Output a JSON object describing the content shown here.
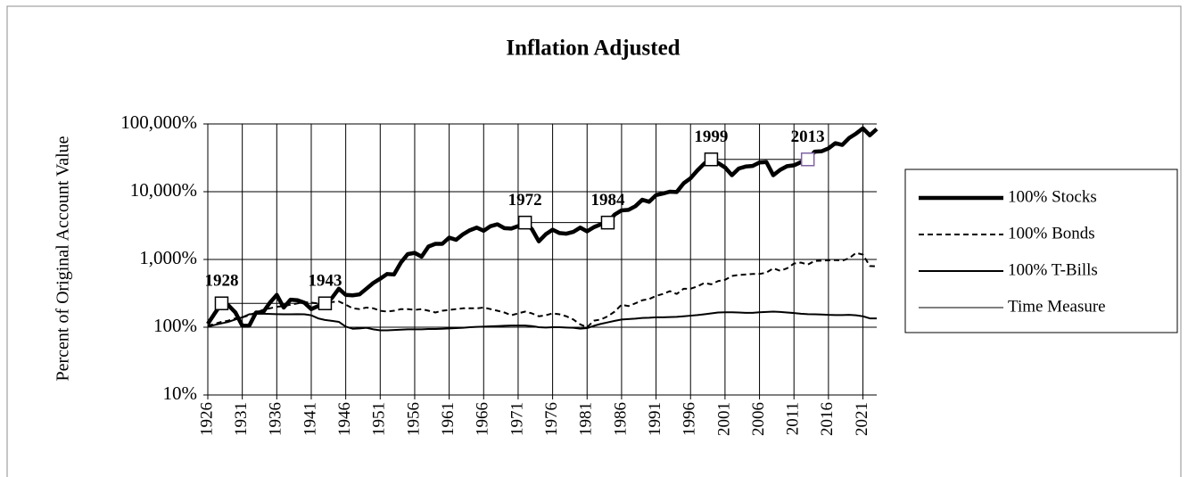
{
  "chart_data": {
    "type": "line",
    "title": "Inflation Adjusted",
    "ylabel": "Percent of Original Account Value",
    "log_scale": true,
    "grid": true,
    "legend": "right",
    "xlim": [
      1926,
      2023
    ],
    "xticks": [
      1926,
      1931,
      1936,
      1941,
      1946,
      1951,
      1956,
      1961,
      1966,
      1971,
      1976,
      1981,
      1986,
      1991,
      1996,
      2001,
      2006,
      2011,
      2016,
      2021
    ],
    "ylim": [
      10,
      100000
    ],
    "yticks": [
      {
        "value": 10,
        "label": "10%"
      },
      {
        "value": 100,
        "label": "100%"
      },
      {
        "value": 1000,
        "label": "1,000%"
      },
      {
        "value": 10000,
        "label": "10,000%"
      },
      {
        "value": 100000,
        "label": "100,000%"
      }
    ],
    "x": [
      1926,
      1927,
      1928,
      1929,
      1930,
      1931,
      1932,
      1933,
      1934,
      1935,
      1936,
      1937,
      1938,
      1939,
      1940,
      1941,
      1942,
      1943,
      1944,
      1945,
      1946,
      1947,
      1948,
      1949,
      1950,
      1951,
      1952,
      1953,
      1954,
      1955,
      1956,
      1957,
      1958,
      1959,
      1960,
      1961,
      1962,
      1963,
      1964,
      1965,
      1966,
      1967,
      1968,
      1969,
      1970,
      1971,
      1972,
      1973,
      1974,
      1975,
      1976,
      1977,
      1978,
      1979,
      1980,
      1981,
      1982,
      1983,
      1984,
      1985,
      1986,
      1987,
      1988,
      1989,
      1990,
      1991,
      1992,
      1993,
      1994,
      1995,
      1996,
      1997,
      1998,
      1999,
      2000,
      2001,
      2002,
      2003,
      2004,
      2005,
      2006,
      2007,
      2008,
      2009,
      2010,
      2011,
      2012,
      2013,
      2014,
      2015,
      2016,
      2017,
      2018,
      2019,
      2020,
      2021,
      2022,
      2023
    ],
    "series": [
      {
        "name": "100% Stocks",
        "color": "#000000",
        "width": 4.5,
        "dash": false,
        "values": [
          112,
          160,
          225,
          210,
          165,
          105,
          105,
          165,
          165,
          230,
          300,
          195,
          255,
          250,
          230,
          185,
          205,
          225,
          270,
          370,
          300,
          295,
          305,
          370,
          450,
          520,
          610,
          600,
          900,
          1200,
          1250,
          1100,
          1550,
          1700,
          1700,
          2100,
          1950,
          2350,
          2700,
          2950,
          2650,
          3100,
          3300,
          2900,
          2850,
          3100,
          3500,
          2800,
          1850,
          2350,
          2750,
          2450,
          2400,
          2550,
          2950,
          2600,
          3000,
          3300,
          3500,
          4600,
          5300,
          5400,
          6100,
          7600,
          7100,
          8900,
          9400,
          10000,
          9900,
          13300,
          15800,
          20600,
          26000,
          30000,
          26500,
          22800,
          17500,
          22000,
          23500,
          24000,
          27000,
          27400,
          17500,
          21000,
          23800,
          24500,
          27200,
          30000,
          39000,
          39500,
          43500,
          52000,
          49000,
          62000,
          72000,
          86000,
          68000,
          84000
        ]
      },
      {
        "name": "100% Bonds",
        "color": "#000000",
        "width": 2,
        "dash": true,
        "values": [
          105,
          112,
          120,
          125,
          135,
          140,
          150,
          165,
          180,
          190,
          200,
          205,
          215,
          225,
          235,
          230,
          225,
          230,
          235,
          240,
          215,
          190,
          185,
          195,
          190,
          175,
          170,
          175,
          185,
          185,
          180,
          185,
          175,
          165,
          175,
          180,
          185,
          190,
          190,
          190,
          195,
          185,
          175,
          165,
          150,
          160,
          170,
          160,
          145,
          150,
          160,
          155,
          145,
          130,
          110,
          100,
          125,
          130,
          145,
          170,
          215,
          205,
          225,
          250,
          260,
          290,
          310,
          340,
          310,
          370,
          370,
          400,
          450,
          430,
          480,
          500,
          570,
          590,
          600,
          610,
          610,
          640,
          740,
          680,
          740,
          870,
          900,
          840,
          950,
          960,
          970,
          980,
          960,
          1040,
          1250,
          1180,
          800,
          790
        ]
      },
      {
        "name": "100% T-Bills",
        "color": "#000000",
        "width": 2,
        "dash": false,
        "values": [
          102,
          108,
          114,
          120,
          130,
          140,
          155,
          158,
          158,
          157,
          156,
          155,
          155,
          156,
          155,
          150,
          135,
          128,
          124,
          120,
          102,
          95,
          96,
          98,
          93,
          90,
          90,
          91,
          92,
          93,
          93,
          93,
          94,
          94,
          95,
          96,
          97,
          98,
          100,
          101,
          102,
          103,
          104,
          105,
          106,
          106,
          106,
          104,
          100,
          99,
          100,
          100,
          99,
          98,
          95,
          97,
          105,
          112,
          118,
          124,
          130,
          132,
          134,
          137,
          138,
          140,
          140,
          141,
          142,
          145,
          148,
          151,
          155,
          160,
          165,
          166,
          166,
          165,
          163,
          163,
          166,
          168,
          170,
          168,
          165,
          162,
          158,
          156,
          155,
          154,
          152,
          151,
          151,
          152,
          150,
          145,
          135,
          135
        ]
      },
      {
        "name": "Time Measure",
        "color": "#000000",
        "width": 1,
        "dash": false,
        "values": [
          null,
          null,
          225,
          225,
          225,
          225,
          225,
          225,
          225,
          225,
          225,
          225,
          225,
          225,
          225,
          225,
          225,
          225,
          null,
          null,
          null,
          null,
          null,
          null,
          null,
          null,
          null,
          null,
          null,
          null,
          null,
          null,
          null,
          null,
          null,
          null,
          null,
          null,
          null,
          null,
          null,
          null,
          null,
          null,
          null,
          null,
          3500,
          3500,
          3500,
          3500,
          3500,
          3500,
          3500,
          3500,
          3500,
          3500,
          3500,
          3500,
          3500,
          null,
          null,
          null,
          null,
          null,
          null,
          null,
          null,
          null,
          null,
          null,
          null,
          null,
          null,
          30000,
          30000,
          30000,
          30000,
          30000,
          30000,
          30000,
          30000,
          30000,
          30000,
          30000,
          30000,
          30000,
          30000,
          30000,
          null,
          null,
          null,
          null,
          null,
          null,
          null,
          null,
          null,
          null
        ]
      }
    ],
    "markers": [
      {
        "x": 1928,
        "y": 225,
        "color": "#000000"
      },
      {
        "x": 1943,
        "y": 225,
        "color": "#000000"
      },
      {
        "x": 1972,
        "y": 3500,
        "color": "#000000"
      },
      {
        "x": 1984,
        "y": 3500,
        "color": "#000000"
      },
      {
        "x": 1999,
        "y": 30000,
        "color": "#000000"
      },
      {
        "x": 2013,
        "y": 30000,
        "color": "#8064a2"
      }
    ]
  }
}
